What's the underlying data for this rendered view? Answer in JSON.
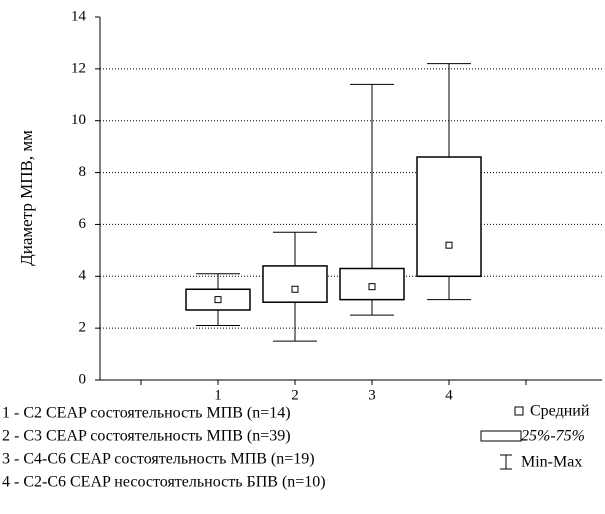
{
  "chart_data": {
    "type": "box",
    "y_label": "Диаметр МПВ, мм",
    "categories": [
      "1",
      "2",
      "3",
      "4"
    ],
    "min": [
      2.1,
      1.5,
      2.5,
      3.1
    ],
    "q1": [
      2.7,
      3.0,
      3.1,
      4.0
    ],
    "mean": [
      3.1,
      3.5,
      3.6,
      5.2
    ],
    "q3": [
      3.5,
      4.4,
      4.3,
      8.6
    ],
    "max": [
      4.1,
      5.7,
      11.4,
      12.2
    ],
    "ylim": [
      0,
      14
    ],
    "yticks": [
      0,
      2,
      4,
      6,
      8,
      10,
      12,
      14
    ],
    "grid": true,
    "legend": {
      "mean": "Средний",
      "box": "25%-75%",
      "range": "Min-Max"
    },
    "notes": [
      "1 - C2 CEAP состоятельность МПВ (n=14)",
      "2 - C3 CEAP состоятельность МПВ (n=39)",
      "3 - C4-C6 CEAP состоятельность МПВ (n=19)",
      "4 - C2-C6 CEAP несостоятельность БПВ (n=10)"
    ]
  }
}
